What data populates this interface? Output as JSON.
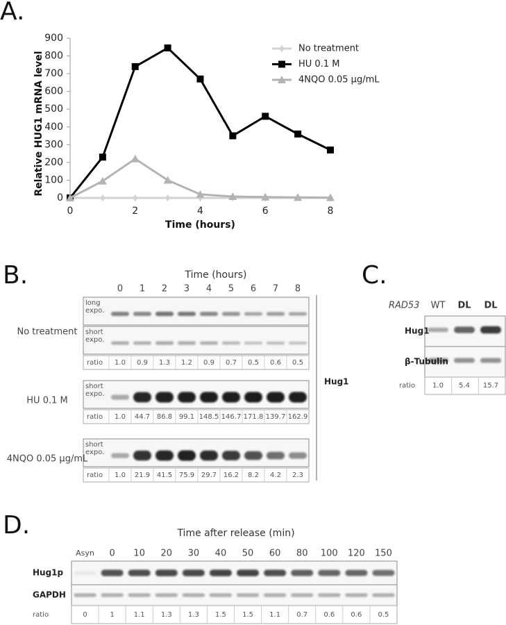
{
  "panel_labels": {
    "a": "A.",
    "b": "B.",
    "c": "C.",
    "d": "D."
  },
  "chart_data": {
    "type": "line",
    "xlabel": "Time (hours)",
    "ylabel": "Relative HUG1 mRNA level",
    "x": [
      0,
      1,
      2,
      3,
      4,
      5,
      6,
      7,
      8
    ],
    "series": [
      {
        "name": "No treatment",
        "color": "#d3d3d3",
        "marker": "diamond",
        "values": [
          0,
          0,
          0,
          0,
          0,
          0,
          0,
          0,
          0
        ]
      },
      {
        "name": "HU 0.1 M",
        "color": "#000000",
        "marker": "square",
        "values": [
          0,
          230,
          740,
          845,
          670,
          350,
          460,
          360,
          270
        ]
      },
      {
        "name": "4NQO 0.05 µg/mL",
        "color": "#b3b3b3",
        "marker": "triangle",
        "values": [
          0,
          95,
          220,
          100,
          20,
          8,
          5,
          3,
          2
        ]
      }
    ],
    "xlim": [
      0,
      8
    ],
    "xticks": [
      0,
      2,
      4,
      6,
      8
    ],
    "ylim": [
      0,
      900
    ],
    "yticks": [
      0,
      100,
      200,
      300,
      400,
      500,
      600,
      700,
      800,
      900
    ],
    "grid": false,
    "legend": "upper right"
  },
  "blot_b": {
    "title": "Time (hours)",
    "lanes": [
      "0",
      "1",
      "2",
      "3",
      "4",
      "5",
      "6",
      "7",
      "8"
    ],
    "protein": "Hug1",
    "ratio_label": "ratio",
    "groups": [
      {
        "label": "No treatment",
        "exposures": [
          "long expo.",
          "short expo."
        ],
        "ratios": [
          "1.0",
          "0.9",
          "1.3",
          "1.2",
          "0.9",
          "0.7",
          "0.5",
          "0.6",
          "0.5"
        ]
      },
      {
        "label": "HU 0.1 M",
        "exposures": [
          "short expo."
        ],
        "ratios": [
          "1.0",
          "44.7",
          "86.8",
          "99.1",
          "148.5",
          "146.7",
          "171.8",
          "139.7",
          "162.9"
        ]
      },
      {
        "label": "4NQO 0.05 µg/mL",
        "exposures": [
          "short expo."
        ],
        "ratios": [
          "1.0",
          "21.9",
          "41.5",
          "75.9",
          "29.7",
          "16.2",
          "8.2",
          "4.2",
          "2.3"
        ]
      }
    ]
  },
  "blot_c": {
    "gene": "RAD53",
    "lanes": [
      "WT",
      "DL",
      "DL"
    ],
    "rows": [
      "Hug1",
      "β-Tubulin"
    ],
    "ratio_label": "ratio",
    "ratios": [
      "1.0",
      "5.4",
      "15.7"
    ]
  },
  "blot_d": {
    "title": "Time after release (min)",
    "lanes": [
      "Asyn",
      "0",
      "10",
      "20",
      "30",
      "40",
      "50",
      "60",
      "80",
      "100",
      "120",
      "150"
    ],
    "rows": [
      "Hug1p",
      "GAPDH"
    ],
    "ratio_label": "ratio",
    "ratios": [
      "0",
      "1",
      "1.1",
      "1.3",
      "1.3",
      "1.5",
      "1.5",
      "1.1",
      "0.7",
      "0.6",
      "0.6",
      "0.5"
    ]
  }
}
